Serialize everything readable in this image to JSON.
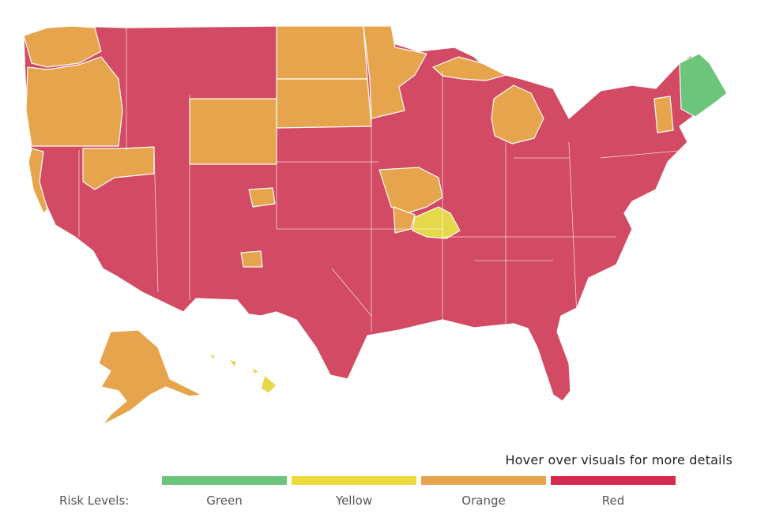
{
  "hint_text": "Hover over visuals for more details",
  "legend": {
    "title": "Risk Levels:",
    "items": [
      {
        "label": "Green",
        "color": "#6cc57a"
      },
      {
        "label": "Yellow",
        "color": "#ecd93c"
      },
      {
        "label": "Orange",
        "color": "#e6a54d"
      },
      {
        "label": "Red",
        "color": "#d6294f"
      }
    ]
  },
  "colors": {
    "red": "#d24a63",
    "orange": "#e6a54d",
    "yellow": "#e5d84a",
    "green": "#6cc57a",
    "border": "#ffffff"
  },
  "regions": [
    {
      "id": "contiguous-us-base",
      "risk": "red"
    },
    {
      "id": "washington",
      "risk": "orange"
    },
    {
      "id": "oregon",
      "risk": "orange"
    },
    {
      "id": "california-coast",
      "risk": "orange"
    },
    {
      "id": "nevada-north",
      "risk": "orange"
    },
    {
      "id": "wyoming",
      "risk": "orange"
    },
    {
      "id": "north-dakota",
      "risk": "orange"
    },
    {
      "id": "south-dakota",
      "risk": "orange"
    },
    {
      "id": "minnesota",
      "risk": "orange"
    },
    {
      "id": "michigan",
      "risk": "orange"
    },
    {
      "id": "michigan-upper",
      "risk": "orange"
    },
    {
      "id": "iowa-region",
      "risk": "orange"
    },
    {
      "id": "missouri-region",
      "risk": "orange"
    },
    {
      "id": "colorado-spot",
      "risk": "orange"
    },
    {
      "id": "new-mexico-spot",
      "risk": "orange"
    },
    {
      "id": "vermont",
      "risk": "orange"
    },
    {
      "id": "alaska",
      "risk": "orange"
    },
    {
      "id": "missouri-southeast",
      "risk": "yellow"
    },
    {
      "id": "hawaii",
      "risk": "yellow"
    },
    {
      "id": "maine",
      "risk": "green"
    }
  ]
}
